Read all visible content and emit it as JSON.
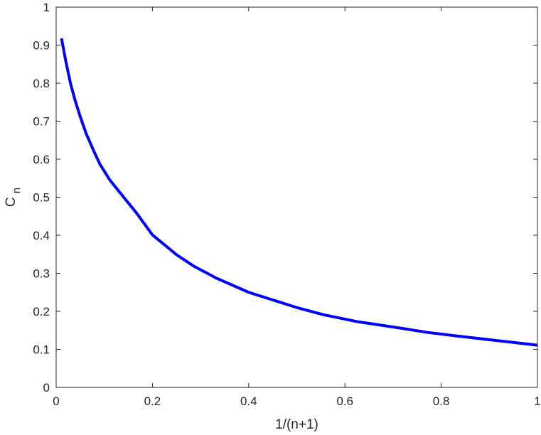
{
  "chart_data": {
    "type": "line",
    "title": "",
    "xlabel": "1/(n+1)",
    "ylabel": "C",
    "ylabel_subscript": "n",
    "xlim": [
      0,
      1
    ],
    "ylim": [
      0,
      1
    ],
    "xticks": [
      0,
      0.2,
      0.4,
      0.6,
      0.8,
      1
    ],
    "xtick_labels": [
      "0",
      "0.2",
      "0.4",
      "0.6",
      "0.8",
      "1"
    ],
    "yticks": [
      0,
      0.1,
      0.2,
      0.3,
      0.4,
      0.5,
      0.6,
      0.7,
      0.8,
      0.9,
      1
    ],
    "ytick_labels": [
      "0",
      "0.1",
      "0.2",
      "0.3",
      "0.4",
      "0.5",
      "0.6",
      "0.7",
      "0.8",
      "0.9",
      "1"
    ],
    "grid": false,
    "box": true,
    "series": [
      {
        "color": "#0000ff",
        "x": [
          0.0111,
          0.02,
          0.03,
          0.04,
          0.05,
          0.0625,
          0.0769,
          0.0909,
          0.1111,
          0.1429,
          0.1667,
          0.2,
          0.25,
          0.2857,
          0.3333,
          0.4,
          0.5,
          0.5556,
          0.625,
          0.7143,
          0.7692,
          0.8333,
          0.9091,
          1.0
        ],
        "y": [
          0.918,
          0.858,
          0.798,
          0.752,
          0.712,
          0.667,
          0.625,
          0.587,
          0.546,
          0.496,
          0.459,
          0.401,
          0.349,
          0.319,
          0.287,
          0.25,
          0.21,
          0.191,
          0.173,
          0.156,
          0.145,
          0.135,
          0.124,
          0.111
        ]
      }
    ]
  }
}
